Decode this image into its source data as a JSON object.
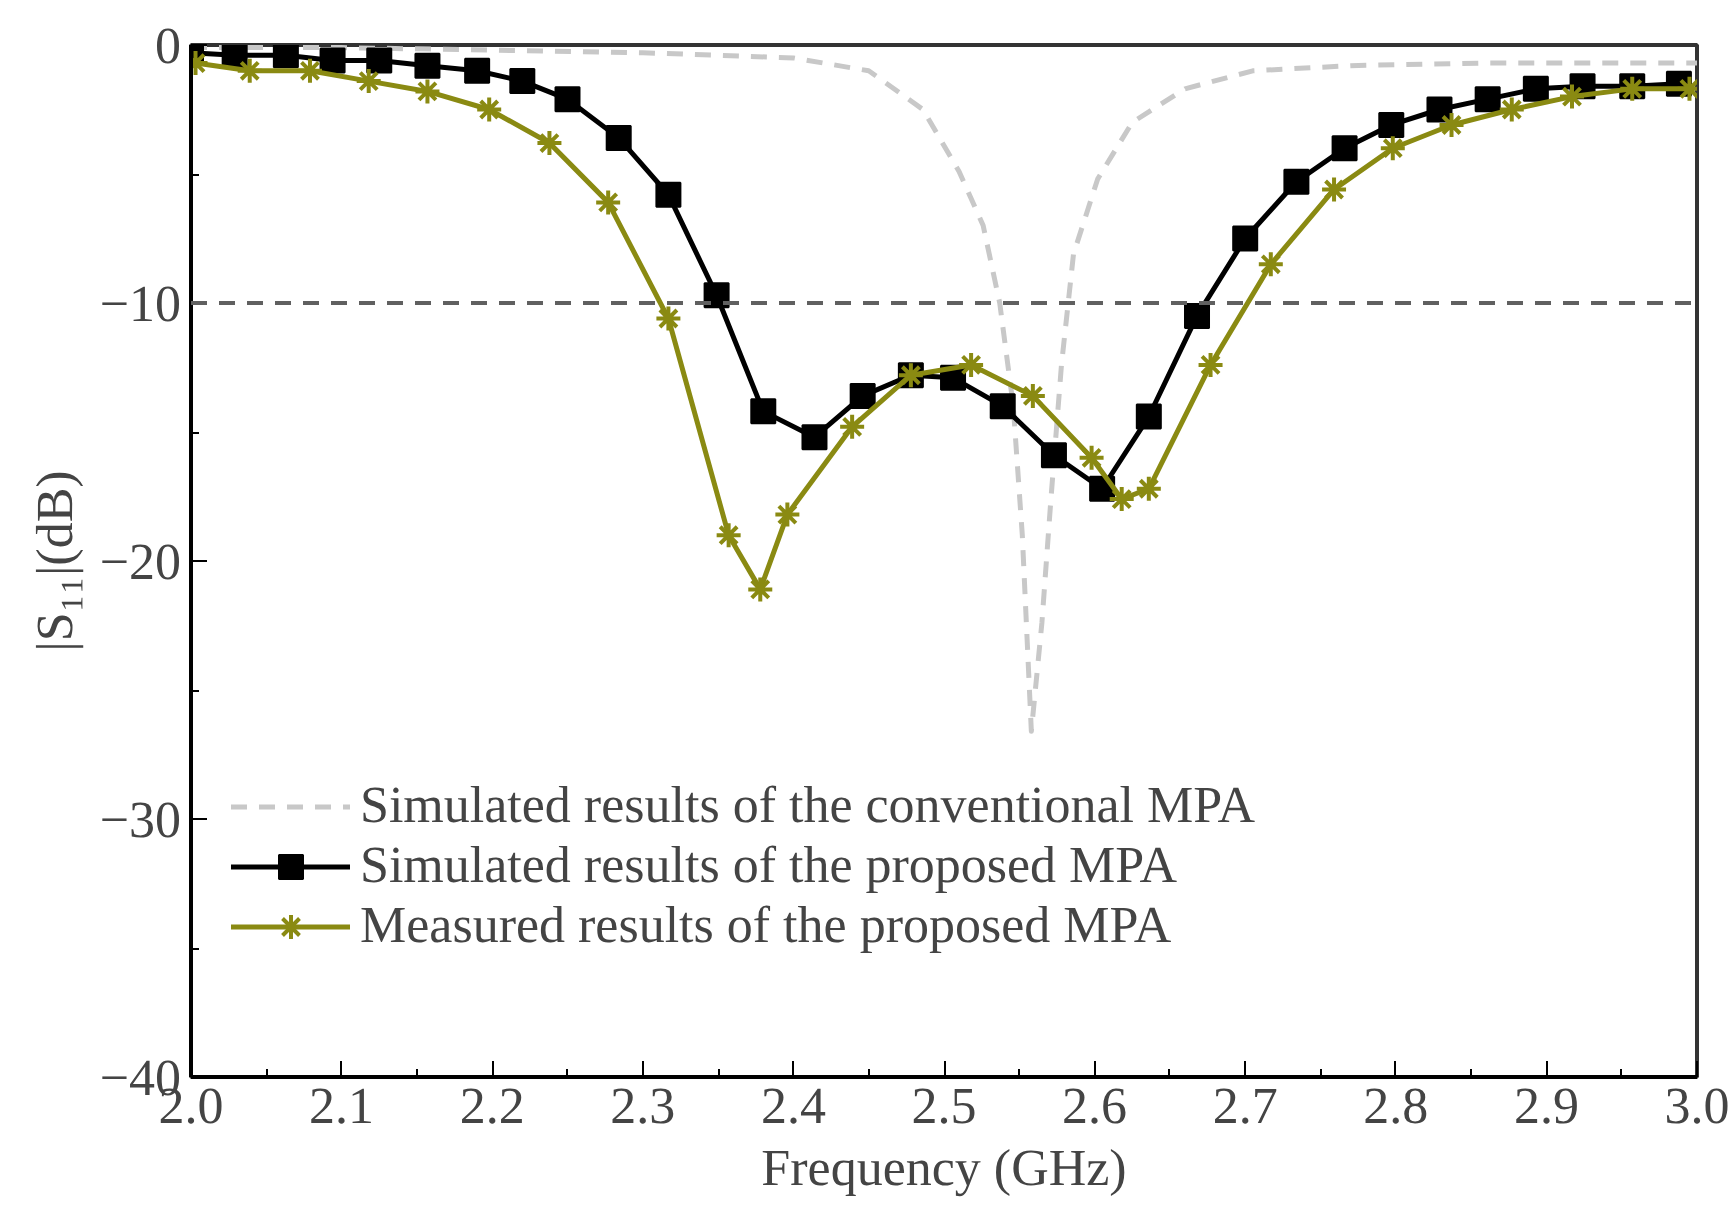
{
  "chart_data": {
    "type": "line",
    "xlabel": "Frequency (GHz)",
    "ylabel": "|S₁₁|(dB)",
    "xlim": [
      2.0,
      3.0
    ],
    "ylim": [
      -40,
      0
    ],
    "xticks": [
      {
        "value": 2.0,
        "label": "2.0"
      },
      2.1,
      2.2,
      2.3,
      2.4,
      2.5,
      2.6,
      2.7,
      2.8,
      2.9,
      {
        "value": 3.0,
        "label": "3.0"
      }
    ],
    "yticks": [
      -40,
      -30,
      -20,
      -10,
      0
    ],
    "grid": false,
    "legend": "bottom left",
    "ref_lines": [
      {
        "axis": "y",
        "value": -10,
        "color": "#606060",
        "line_style": "dashed"
      }
    ],
    "series": [
      {
        "name": "Simulated results of the conventional MPA",
        "color": "#c8c8c8",
        "line_style": "dashed",
        "marker": "none",
        "x": [
          2.0,
          2.1,
          2.2,
          2.3,
          2.4,
          2.45,
          2.486,
          2.51,
          2.526,
          2.537,
          2.546,
          2.552,
          2.558,
          2.565,
          2.571,
          2.578,
          2.586,
          2.602,
          2.625,
          2.66,
          2.705,
          2.77,
          2.86,
          3.0
        ],
        "values": [
          -0.1,
          -0.1,
          -0.2,
          -0.3,
          -0.5,
          -1.0,
          -2.5,
          -4.9,
          -7.0,
          -10.0,
          -14.0,
          -19.0,
          -26.6,
          -22.4,
          -17.6,
          -12.4,
          -8.1,
          -5.2,
          -3.0,
          -1.7,
          -1.0,
          -0.8,
          -0.7,
          -0.7
        ]
      },
      {
        "name": "Simulated results of the proposed MPA",
        "color": "#000000",
        "line_style": "solid",
        "marker": "square",
        "x": [
          2.0,
          2.029,
          2.063,
          2.094,
          2.125,
          2.157,
          2.19,
          2.22,
          2.25,
          2.284,
          2.317,
          2.349,
          2.38,
          2.414,
          2.446,
          2.478,
          2.506,
          2.539,
          2.573,
          2.605,
          2.636,
          2.668,
          2.7,
          2.734,
          2.766,
          2.797,
          2.829,
          2.861,
          2.893,
          2.924,
          2.957,
          2.988
        ],
        "values": [
          -0.3,
          -0.4,
          -0.4,
          -0.6,
          -0.6,
          -0.8,
          -1.0,
          -1.4,
          -2.1,
          -3.6,
          -5.8,
          -9.7,
          -14.2,
          -15.2,
          -13.6,
          -12.8,
          -12.9,
          -14.0,
          -15.9,
          -17.2,
          -14.4,
          -10.5,
          -7.5,
          -5.3,
          -4.0,
          -3.1,
          -2.5,
          -2.1,
          -1.7,
          -1.6,
          -1.6,
          -1.5
        ]
      },
      {
        "name": "Measured results of the proposed MPA",
        "color": "#8a8a12",
        "line_style": "solid",
        "marker": "cross",
        "x": [
          2.003,
          2.039,
          2.079,
          2.118,
          2.157,
          2.198,
          2.238,
          2.277,
          2.317,
          2.357,
          2.378,
          2.396,
          2.439,
          2.478,
          2.518,
          2.559,
          2.598,
          2.618,
          2.636,
          2.677,
          2.717,
          2.759,
          2.798,
          2.837,
          2.877,
          2.917,
          2.957,
          2.995
        ],
        "values": [
          -0.7,
          -1.0,
          -1.0,
          -1.4,
          -1.8,
          -2.5,
          -3.8,
          -6.1,
          -10.6,
          -19.0,
          -21.1,
          -18.2,
          -14.8,
          -12.8,
          -12.4,
          -13.6,
          -16.0,
          -17.6,
          -17.2,
          -12.4,
          -8.5,
          -5.6,
          -4.0,
          -3.1,
          -2.5,
          -2.0,
          -1.7,
          -1.7
        ]
      }
    ]
  }
}
